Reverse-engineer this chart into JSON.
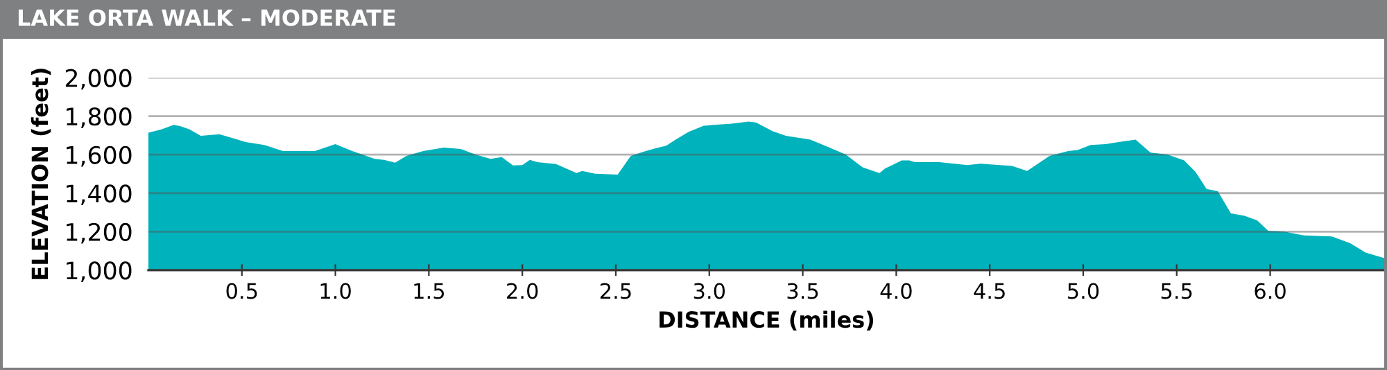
{
  "chart_data": {
    "type": "area",
    "title": "LAKE ORTA WALK – MODERATE",
    "xlabel": "DISTANCE (miles)",
    "ylabel": "ELEVATION (feet)",
    "x": [
      0.0,
      0.07,
      0.135,
      0.17,
      0.22,
      0.28,
      0.38,
      0.44,
      0.52,
      0.62,
      0.72,
      0.89,
      1.0,
      1.09,
      1.21,
      1.26,
      1.32,
      1.38,
      1.47,
      1.58,
      1.67,
      1.75,
      1.83,
      1.89,
      1.95,
      2.0,
      2.04,
      2.08,
      2.18,
      2.29,
      2.32,
      2.39,
      2.51,
      2.58,
      2.66,
      2.72,
      2.77,
      2.82,
      2.89,
      2.97,
      3.02,
      3.11,
      3.21,
      3.25,
      3.34,
      3.41,
      3.54,
      3.63,
      3.73,
      3.82,
      3.91,
      3.94,
      4.03,
      4.07,
      4.1,
      4.23,
      4.38,
      4.45,
      4.62,
      4.7,
      4.82,
      4.92,
      4.97,
      5.04,
      5.12,
      5.19,
      5.28,
      5.36,
      5.45,
      5.54,
      5.6,
      5.66,
      5.72,
      5.79,
      5.86,
      5.93,
      5.99,
      6.08,
      6.18,
      6.33,
      6.43,
      6.51,
      6.61
    ],
    "series": [
      {
        "color": "#00b2bb",
        "values": [
          1714,
          1731,
          1755,
          1748,
          1731,
          1698,
          1706,
          1689,
          1666,
          1650,
          1619,
          1619,
          1655,
          1619,
          1578,
          1573,
          1558,
          1594,
          1619,
          1637,
          1630,
          1601,
          1578,
          1587,
          1544,
          1546,
          1573,
          1561,
          1551,
          1504,
          1515,
          1501,
          1496,
          1594,
          1619,
          1635,
          1647,
          1678,
          1719,
          1750,
          1755,
          1760,
          1772,
          1767,
          1721,
          1698,
          1678,
          1642,
          1601,
          1534,
          1504,
          1528,
          1570,
          1570,
          1561,
          1561,
          1546,
          1553,
          1541,
          1515,
          1594,
          1619,
          1624,
          1650,
          1655,
          1666,
          1678,
          1611,
          1601,
          1570,
          1511,
          1422,
          1410,
          1295,
          1283,
          1259,
          1204,
          1199,
          1180,
          1175,
          1139,
          1091,
          1062
        ]
      }
    ],
    "xlim": [
      0,
      6.61
    ],
    "xticks": [
      {
        "value": 0.5,
        "label": "0.5"
      },
      {
        "value": 1.0,
        "label": "1.0"
      },
      {
        "value": 1.5,
        "label": "1.5"
      },
      {
        "value": 2.0,
        "label": "2.0"
      },
      {
        "value": 2.5,
        "label": "2.5"
      },
      {
        "value": 3.0,
        "label": "3.0"
      },
      {
        "value": 3.5,
        "label": "3.5"
      },
      {
        "value": 4.0,
        "label": "4.0"
      },
      {
        "value": 4.5,
        "label": "4.5"
      },
      {
        "value": 5.0,
        "label": "5.0"
      },
      {
        "value": 5.5,
        "label": "5.5"
      },
      {
        "value": 6.0,
        "label": "6.0"
      }
    ],
    "ylim": [
      1000,
      2000
    ],
    "yticks": [
      {
        "value": 1000,
        "label": "1,000"
      },
      {
        "value": 1200,
        "label": "1,200"
      },
      {
        "value": 1400,
        "label": "1,400"
      },
      {
        "value": 1600,
        "label": "1,600"
      },
      {
        "value": 1800,
        "label": "1,800"
      },
      {
        "value": 2000,
        "label": "2,000"
      }
    ],
    "grid": "y",
    "legend": false
  }
}
